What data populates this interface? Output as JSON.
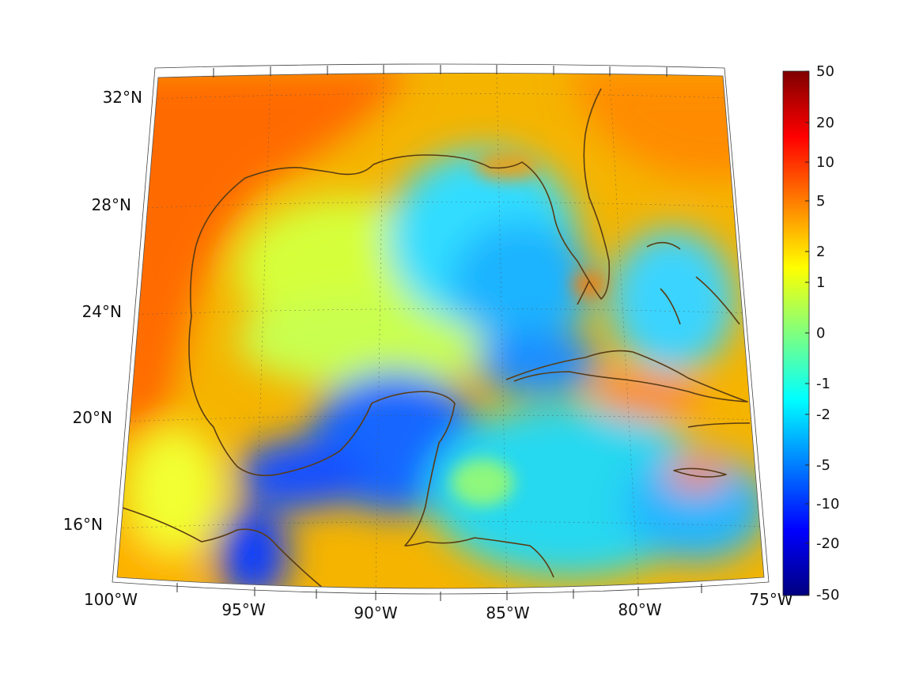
{
  "map": {
    "projection": "lambert-conformal-style conic",
    "extent": {
      "lon": [
        -100,
        -75
      ],
      "lat": [
        14,
        33
      ]
    },
    "grid": true,
    "coastline_color": "#5a3c14",
    "lat_labels": [
      "32°N",
      "28°N",
      "24°N",
      "20°N",
      "16°N"
    ],
    "lat_values": [
      32,
      28,
      24,
      20,
      16
    ],
    "lon_labels": [
      "100°W",
      "95°W",
      "90°W",
      "85°W",
      "80°W",
      "75°W"
    ],
    "lon_values": [
      -100,
      -95,
      -90,
      -85,
      -80,
      -75
    ],
    "regions": [
      "Gulf of Mexico",
      "Florida",
      "Cuba",
      "Bahamas",
      "Yucatan Peninsula",
      "Jamaica",
      "Central America",
      "Mexico",
      "US Gulf Coast"
    ]
  },
  "colorbar": {
    "colormap": "jet",
    "scale": "symmetric-log",
    "tick_labels": [
      "50",
      "20",
      "10",
      "5",
      "2",
      "1",
      "0",
      "-1",
      "-2",
      "-5",
      "-10",
      "-20",
      "-50"
    ],
    "tick_values": [
      50,
      20,
      10,
      5,
      2,
      1,
      0,
      -1,
      -2,
      -5,
      -10,
      -20,
      -50
    ]
  }
}
